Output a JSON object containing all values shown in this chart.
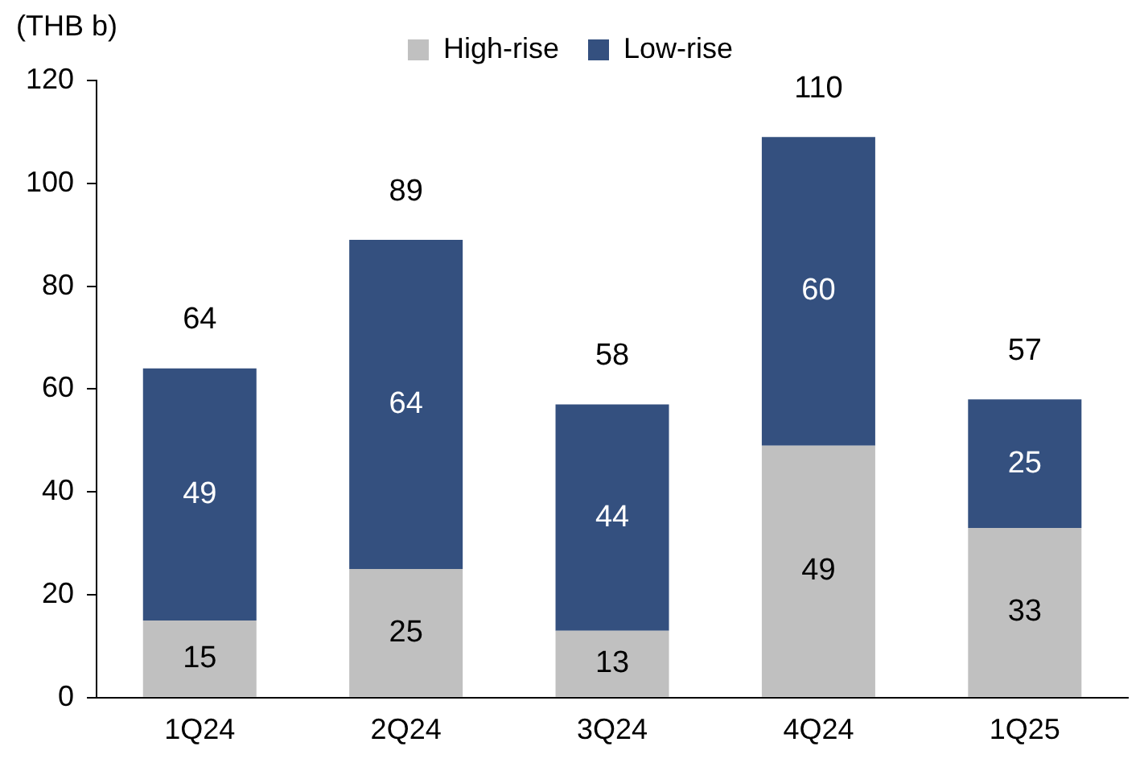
{
  "chart_data": {
    "type": "bar",
    "stacked": true,
    "ylabel": "(THB b)",
    "categories": [
      "1Q24",
      "2Q24",
      "3Q24",
      "4Q24",
      "1Q25"
    ],
    "series": [
      {
        "name": "High-rise",
        "color": "#c0c0c0",
        "values": [
          15,
          25,
          13,
          49,
          33
        ]
      },
      {
        "name": "Low-rise",
        "color": "#34507f",
        "values": [
          49,
          64,
          44,
          60,
          25
        ]
      }
    ],
    "ylim": [
      0,
      120
    ],
    "yticks": [
      0,
      20,
      40,
      60,
      80,
      100,
      120
    ],
    "grid": false,
    "legend": "top",
    "data_labels": true,
    "totals": [
      "64",
      "89",
      "58",
      "110",
      "57"
    ]
  }
}
